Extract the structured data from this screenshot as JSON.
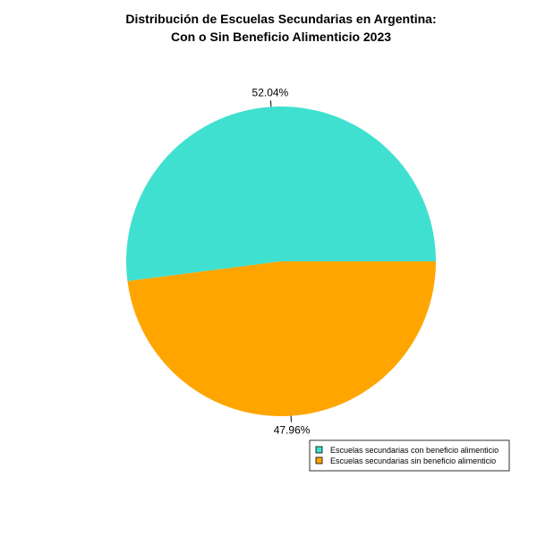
{
  "chart_data": {
    "type": "pie",
    "title_line1": "Distribución de Escuelas Secundarias en Argentina:",
    "title_line2": "Con o Sin Beneficio Alimenticio 2023",
    "slices": [
      {
        "label": "Escuelas secundarias con beneficio alimenticio",
        "value": 52.04,
        "pct_label": "52.04%",
        "color": "#40E0D0"
      },
      {
        "label": "Escuelas secundarias sin beneficio alimenticio",
        "value": 47.96,
        "pct_label": "47.96%",
        "color": "#FFA500"
      }
    ],
    "legend_position": "bottom-right"
  }
}
